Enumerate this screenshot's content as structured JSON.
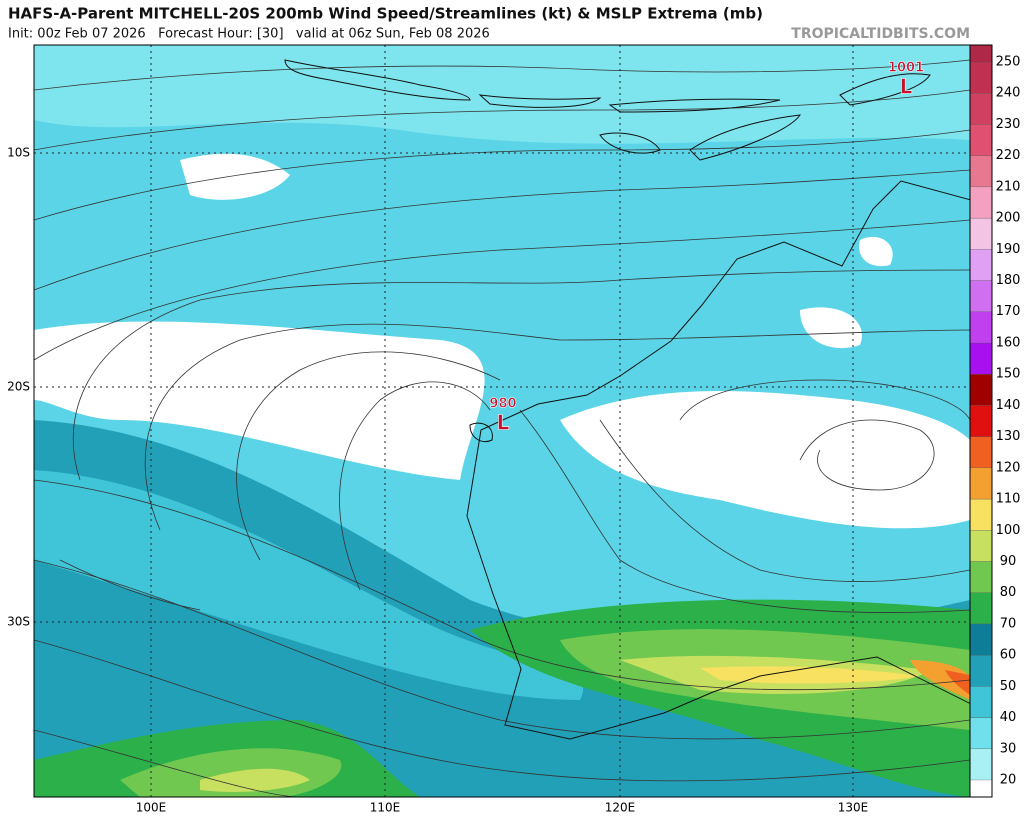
{
  "header": {
    "title": "HAFS-A-Parent MITCHELL-20S 200mb Wind Speed/Streamlines (kt) & MSLP Extrema (mb)",
    "subtitle": "Init: 00z Feb 07 2026   Forecast Hour: [30]   valid at 06z Sun, Feb 08 2026",
    "watermark": "TROPICALTIDBITS.COM"
  },
  "map": {
    "lat_labels": [
      "10S",
      "20S",
      "30S"
    ],
    "lon_labels": [
      "100E",
      "110E",
      "120E",
      "130E"
    ],
    "lows": [
      {
        "pressure": "1001",
        "symbol": "L"
      },
      {
        "pressure": "980",
        "symbol": "L"
      }
    ]
  },
  "colorbar": {
    "levels": [
      {
        "label": "20",
        "color": "#a8f0f4"
      },
      {
        "label": "30",
        "color": "#70e0ec"
      },
      {
        "label": "40",
        "color": "#40c4d8"
      },
      {
        "label": "50",
        "color": "#22a0b8"
      },
      {
        "label": "60",
        "color": "#0e7e98"
      },
      {
        "label": "70",
        "color": "#2cb04a"
      },
      {
        "label": "80",
        "color": "#70c850"
      },
      {
        "label": "90",
        "color": "#c8e060"
      },
      {
        "label": "100",
        "color": "#f8e060"
      },
      {
        "label": "110",
        "color": "#f4a030"
      },
      {
        "label": "120",
        "color": "#f06020"
      },
      {
        "label": "130",
        "color": "#e01010"
      },
      {
        "label": "140",
        "color": "#a00000"
      },
      {
        "label": "150",
        "color": "#a810f0"
      },
      {
        "label": "160",
        "color": "#c040f0"
      },
      {
        "label": "170",
        "color": "#d070f0"
      },
      {
        "label": "180",
        "color": "#e0a0f4"
      },
      {
        "label": "190",
        "color": "#f4c4e4"
      },
      {
        "label": "200",
        "color": "#f4a0c0"
      },
      {
        "label": "210",
        "color": "#e87890"
      },
      {
        "label": "220",
        "color": "#e05070"
      },
      {
        "label": "230",
        "color": "#d04060"
      },
      {
        "label": "240",
        "color": "#c03050"
      },
      {
        "label": "250",
        "color": "#b02848"
      }
    ]
  }
}
